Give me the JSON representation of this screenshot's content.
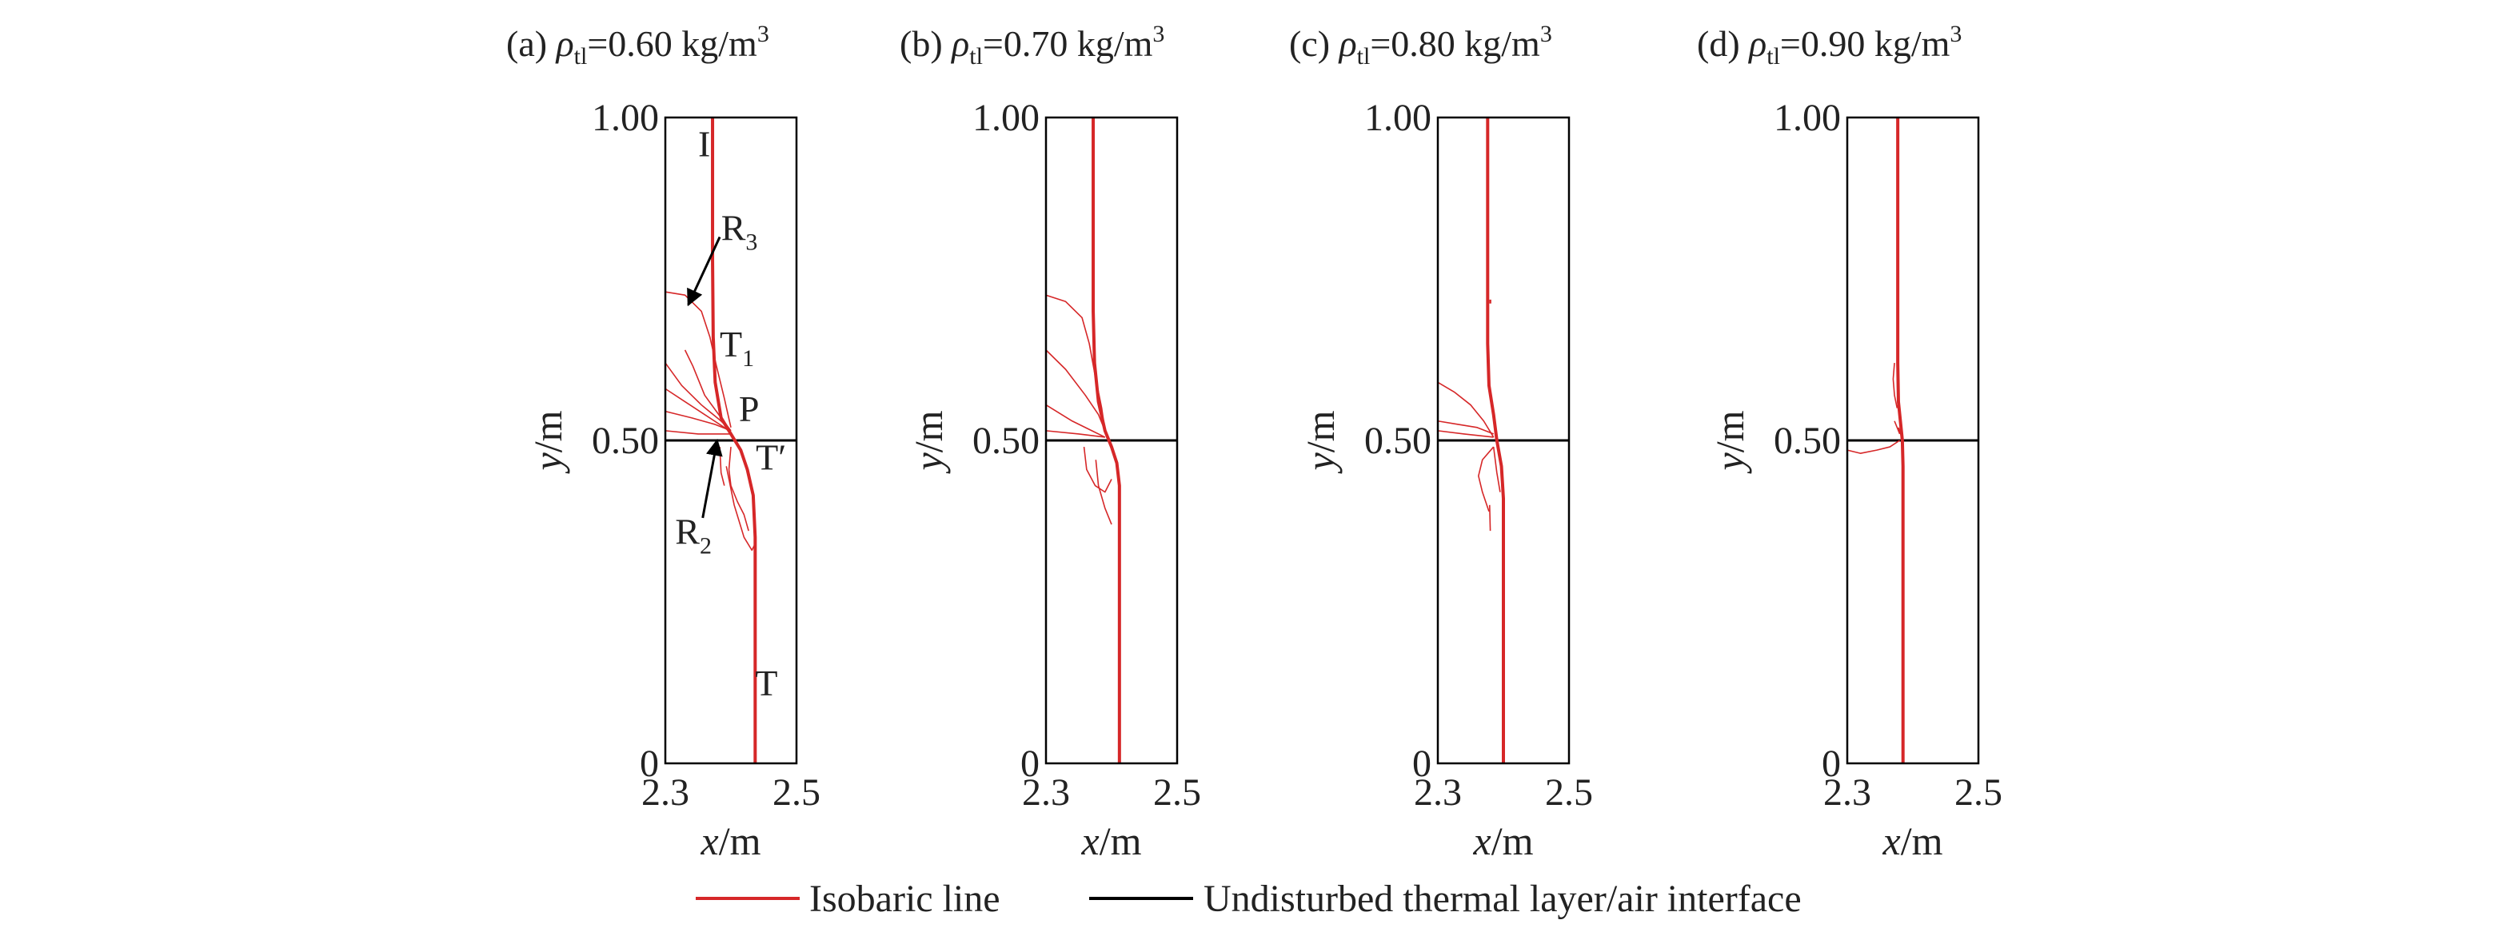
{
  "chart_data": {
    "type": "line",
    "x_unit": "m",
    "y_unit": "m",
    "xlim": [
      2.3,
      2.5
    ],
    "ylim": [
      0,
      1.0
    ],
    "xticks": [
      "2.3",
      "2.5"
    ],
    "yticks": [
      "0",
      "0.50",
      "1.00"
    ],
    "xlabel": {
      "var": "x",
      "unit": "/m"
    },
    "ylabel": {
      "var": "y",
      "unit": "/m"
    },
    "interface_y": 0.5,
    "colors": {
      "isobaric": "#d62728",
      "interface": "#000000",
      "arrow": "#000000"
    },
    "legend": [
      {
        "key": "isobaric",
        "label": "Isobaric line"
      },
      {
        "key": "interface",
        "label": "Undisturbed thermal layer/air interface"
      }
    ],
    "panels": [
      {
        "title_prefix": "(a)",
        "title_value": "=0.60 kg/m",
        "main_line": [
          [
            2.372,
            1.0
          ],
          [
            2.372,
            0.78
          ],
          [
            2.373,
            0.66
          ],
          [
            2.376,
            0.59
          ],
          [
            2.385,
            0.535
          ],
          [
            2.4,
            0.51
          ],
          [
            2.415,
            0.485
          ],
          [
            2.425,
            0.455
          ],
          [
            2.434,
            0.415
          ],
          [
            2.437,
            0.35
          ],
          [
            2.437,
            0.28
          ],
          [
            2.437,
            0.0
          ]
        ],
        "thin_lines": [
          [
            [
              2.3,
              0.73
            ],
            [
              2.33,
              0.725
            ],
            [
              2.355,
              0.7
            ],
            [
              2.368,
              0.66
            ],
            [
              2.378,
              0.615
            ],
            [
              2.39,
              0.565
            ],
            [
              2.4,
              0.52
            ]
          ],
          [
            [
              2.33,
              0.64
            ],
            [
              2.342,
              0.615
            ],
            [
              2.36,
              0.57
            ],
            [
              2.385,
              0.535
            ],
            [
              2.4,
              0.515
            ]
          ],
          [
            [
              2.3,
              0.62
            ],
            [
              2.325,
              0.585
            ],
            [
              2.355,
              0.555
            ],
            [
              2.385,
              0.53
            ],
            [
              2.4,
              0.515
            ]
          ],
          [
            [
              2.3,
              0.545
            ],
            [
              2.34,
              0.535
            ],
            [
              2.375,
              0.525
            ],
            [
              2.4,
              0.515
            ]
          ],
          [
            [
              2.3,
              0.515
            ],
            [
              2.35,
              0.51
            ],
            [
              2.4,
              0.51
            ]
          ],
          [
            [
              2.3,
              0.58
            ],
            [
              2.33,
              0.56
            ],
            [
              2.36,
              0.54
            ],
            [
              2.39,
              0.52
            ],
            [
              2.4,
              0.512
            ]
          ],
          [
            [
              2.4,
              0.49
            ],
            [
              2.397,
              0.455
            ],
            [
              2.4,
              0.43
            ],
            [
              2.41,
              0.405
            ],
            [
              2.42,
              0.385
            ],
            [
              2.427,
              0.36
            ]
          ],
          [
            [
              2.383,
              0.49
            ],
            [
              2.385,
              0.45
            ],
            [
              2.39,
              0.43
            ]
          ],
          [
            [
              2.393,
              0.46
            ],
            [
              2.405,
              0.4
            ],
            [
              2.42,
              0.35
            ],
            [
              2.432,
              0.33
            ],
            [
              2.437,
              0.34
            ]
          ]
        ],
        "labels": [
          {
            "text": "I",
            "x": 2.35,
            "y": 0.94
          },
          {
            "text": "R",
            "sub": "3",
            "x": 2.385,
            "y": 0.81
          },
          {
            "text": "T",
            "sub": "1",
            "x": 2.383,
            "y": 0.63
          },
          {
            "text": "P",
            "x": 2.412,
            "y": 0.53
          },
          {
            "text": "T′",
            "x": 2.438,
            "y": 0.455
          },
          {
            "text": "R",
            "sub": "2",
            "x": 2.315,
            "y": 0.34
          },
          {
            "text": "T",
            "x": 2.437,
            "y": 0.105
          }
        ],
        "arrows": [
          {
            "from": [
              2.383,
              0.815
            ],
            "to": [
              2.335,
              0.71
            ]
          },
          {
            "from": [
              2.357,
              0.38
            ],
            "to": [
              2.379,
              0.5
            ]
          }
        ]
      },
      {
        "title_prefix": "(b)",
        "title_value": "=0.70 kg/m",
        "main_line": [
          [
            2.372,
            1.0
          ],
          [
            2.372,
            0.7
          ],
          [
            2.374,
            0.62
          ],
          [
            2.38,
            0.56
          ],
          [
            2.39,
            0.515
          ],
          [
            2.4,
            0.49
          ],
          [
            2.408,
            0.465
          ],
          [
            2.412,
            0.43
          ],
          [
            2.412,
            0.36
          ],
          [
            2.412,
            0.0
          ]
        ],
        "thin_lines": [
          [
            [
              2.3,
              0.725
            ],
            [
              2.33,
              0.715
            ],
            [
              2.355,
              0.69
            ],
            [
              2.366,
              0.65
            ],
            [
              2.375,
              0.6
            ],
            [
              2.385,
              0.55
            ],
            [
              2.39,
              0.515
            ]
          ],
          [
            [
              2.3,
              0.64
            ],
            [
              2.33,
              0.61
            ],
            [
              2.36,
              0.57
            ],
            [
              2.38,
              0.54
            ],
            [
              2.39,
              0.515
            ]
          ],
          [
            [
              2.3,
              0.555
            ],
            [
              2.34,
              0.53
            ],
            [
              2.37,
              0.515
            ],
            [
              2.39,
              0.505
            ]
          ],
          [
            [
              2.3,
              0.515
            ],
            [
              2.35,
              0.51
            ],
            [
              2.39,
              0.505
            ]
          ],
          [
            [
              2.358,
              0.49
            ],
            [
              2.362,
              0.455
            ],
            [
              2.375,
              0.43
            ],
            [
              2.39,
              0.42
            ],
            [
              2.4,
              0.44
            ]
          ],
          [
            [
              2.376,
              0.47
            ],
            [
              2.38,
              0.43
            ],
            [
              2.39,
              0.395
            ],
            [
              2.4,
              0.37
            ]
          ]
        ]
      },
      {
        "title_prefix": "(c)",
        "title_value": "=0.80 kg/m",
        "main_line": [
          [
            2.376,
            1.0
          ],
          [
            2.376,
            0.65
          ],
          [
            2.378,
            0.585
          ],
          [
            2.385,
            0.54
          ],
          [
            2.39,
            0.5
          ],
          [
            2.397,
            0.46
          ],
          [
            2.4,
            0.41
          ],
          [
            2.4,
            0.33
          ],
          [
            2.4,
            0.0
          ]
        ],
        "thin_lines": [
          [
            [
              2.3,
              0.59
            ],
            [
              2.325,
              0.575
            ],
            [
              2.35,
              0.555
            ],
            [
              2.37,
              0.53
            ],
            [
              2.385,
              0.505
            ]
          ],
          [
            [
              2.3,
              0.515
            ],
            [
              2.34,
              0.51
            ],
            [
              2.385,
              0.505
            ]
          ],
          [
            [
              2.3,
              0.53
            ],
            [
              2.33,
              0.525
            ],
            [
              2.36,
              0.52
            ],
            [
              2.385,
              0.51
            ]
          ],
          [
            [
              2.385,
              0.49
            ],
            [
              2.368,
              0.47
            ],
            [
              2.362,
              0.445
            ],
            [
              2.368,
              0.42
            ],
            [
              2.378,
              0.39
            ]
          ],
          [
            [
              2.385,
              0.49
            ],
            [
              2.39,
              0.45
            ],
            [
              2.395,
              0.42
            ]
          ],
          [
            [
              2.379,
              0.4
            ],
            [
              2.38,
              0.36
            ]
          ]
        ],
        "stray": [
          [
            2.38,
            0.712
          ],
          [
            2.38,
            0.718
          ]
        ]
      },
      {
        "title_prefix": "(d)",
        "title_value": "=0.90 kg/m",
        "main_line": [
          [
            2.377,
            1.0
          ],
          [
            2.377,
            0.62
          ],
          [
            2.378,
            0.56
          ],
          [
            2.382,
            0.52
          ],
          [
            2.384,
            0.5
          ],
          [
            2.385,
            0.46
          ],
          [
            2.385,
            0.37
          ],
          [
            2.385,
            0.0
          ]
        ],
        "thin_lines": [
          [
            [
              2.3,
              0.485
            ],
            [
              2.32,
              0.48
            ],
            [
              2.345,
              0.485
            ],
            [
              2.365,
              0.49
            ],
            [
              2.38,
              0.5
            ]
          ],
          [
            [
              2.372,
              0.62
            ],
            [
              2.37,
              0.595
            ],
            [
              2.372,
              0.57
            ],
            [
              2.376,
              0.55
            ]
          ],
          [
            [
              2.372,
              0.53
            ],
            [
              2.38,
              0.51
            ]
          ],
          [
            [
              2.378,
              0.52
            ],
            [
              2.383,
              0.505
            ]
          ]
        ]
      }
    ]
  },
  "greek": {
    "rho": "ρ",
    "sub": "tl",
    "sup": "3"
  }
}
